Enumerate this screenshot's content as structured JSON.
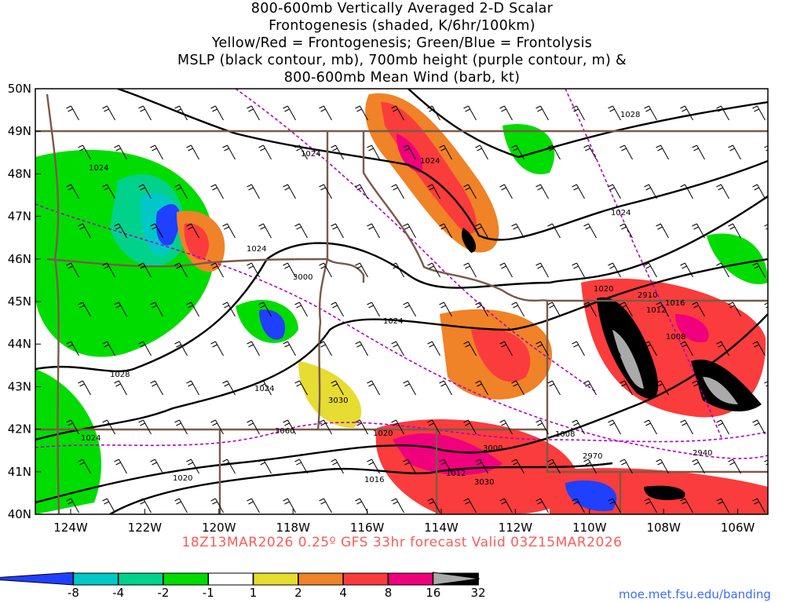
{
  "title": [
    "800-600mb Vertically Averaged 2-D Scalar",
    "Frontogenesis (shaded, K/6hr/100km)",
    "Yellow/Red = Frontogenesis;  Green/Blue = Frontolysis",
    "MSLP (black contour, mb), 700mb height (purple contour, m) &",
    "800-600mb Mean Wind (barb, kt)"
  ],
  "axes": {
    "lat_ticks": [
      "50N",
      "49N",
      "48N",
      "47N",
      "46N",
      "45N",
      "44N",
      "43N",
      "42N",
      "41N",
      "40N"
    ],
    "lon_ticks": [
      "124W",
      "122W",
      "120W",
      "118W",
      "116W",
      "114W",
      "112W",
      "110W",
      "108W",
      "106W"
    ]
  },
  "contour_labels": {
    "mslp": [
      "1028",
      "1024",
      "1024",
      "1024",
      "1024",
      "1024",
      "1028",
      "1024",
      "1024",
      "1020",
      "1020",
      "1016",
      "1012",
      "1008",
      "1012",
      "1016",
      "1008",
      "1020",
      "1024"
    ],
    "height": [
      "3000",
      "3030",
      "3060",
      "3000",
      "3030",
      "2970",
      "2940",
      "2910"
    ]
  },
  "footer": "18Z13MAR2026 0.25º GFS 33hr forecast Valid 03Z15MAR2026",
  "colorbar": {
    "labels": [
      "-8",
      "-4",
      "-2",
      "-1",
      "1",
      "2",
      "4",
      "8",
      "16",
      "32"
    ],
    "colors": [
      "#2040ff",
      "#00c8c8",
      "#00d28c",
      "#00dc00",
      "#ffffff",
      "#e6dc32",
      "#f08228",
      "#fa3c3c",
      "#f0007c",
      "#000000",
      "#aaaaaa"
    ]
  },
  "credit": "moe.met.fsu.edu/banding"
}
